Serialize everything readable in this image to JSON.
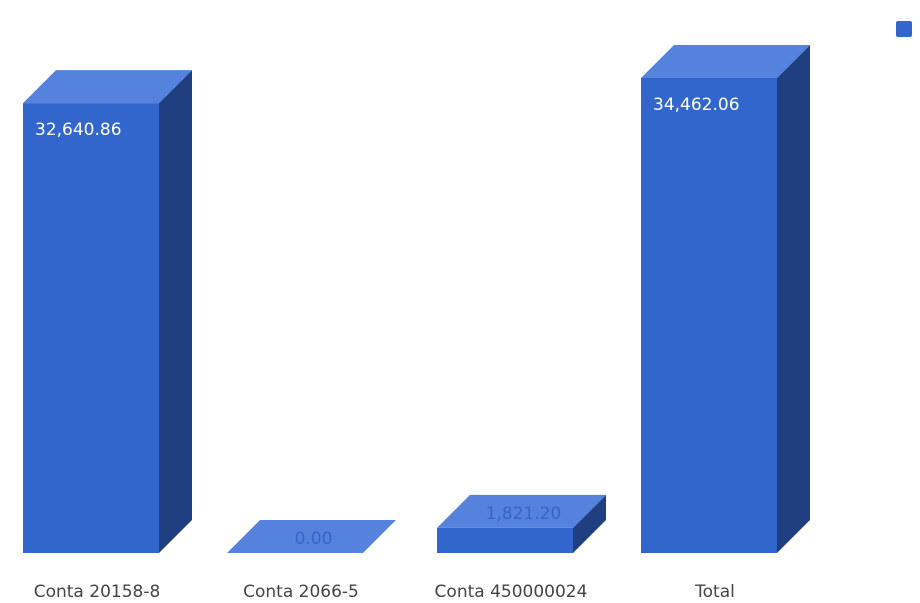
{
  "chart_data": {
    "type": "bar",
    "style": "3d-column",
    "categories": [
      "Conta 20158-8",
      "Conta 2066-5",
      "Conta 450000024",
      "Total"
    ],
    "values": [
      32640.86,
      0.0,
      1821.2,
      34462.06
    ],
    "value_labels": [
      "32,640.86",
      "0.00",
      "1,821.20",
      "34,462.06"
    ],
    "series": [
      {
        "name": "",
        "values": [
          32640.86,
          0.0,
          1821.2,
          34462.06
        ]
      }
    ],
    "ylim": [
      0,
      34462.06
    ],
    "grid": false,
    "legend_position": "top-right",
    "colors": {
      "bar_front": "#3366cc",
      "bar_top": "#5582dd",
      "bar_side": "#1f3f80",
      "label_inside": "#ffffff",
      "label_outside": "#3366cc",
      "axis_text": "#444444"
    }
  }
}
